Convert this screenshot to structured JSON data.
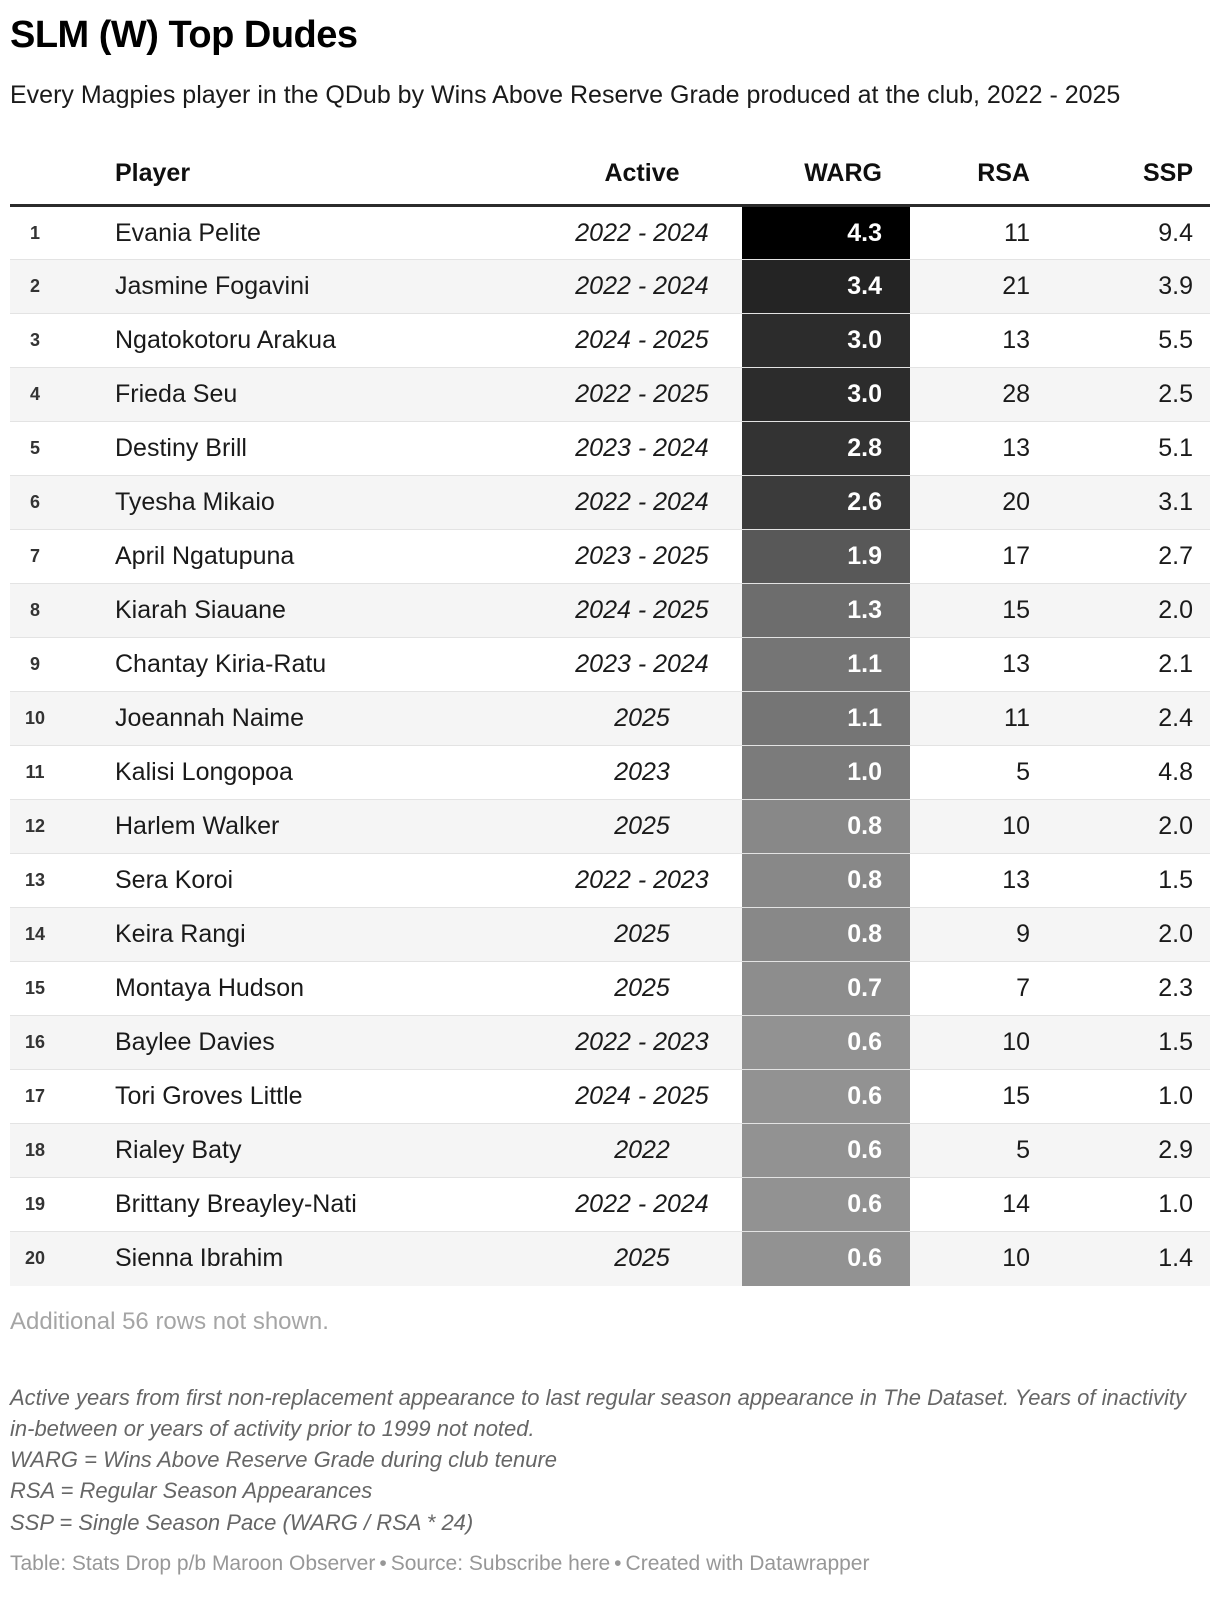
{
  "header": {
    "title": "SLM (W) Top Dudes",
    "subtitle": "Every Magpies player in the QDub by Wins Above Reserve Grade produced at the club, 2022 - 2025"
  },
  "chart_data": {
    "type": "table",
    "title": "SLM (W) Top Dudes",
    "subtitle": "Every Magpies player in the QDub by Wins Above Reserve Grade produced at the club, 2022 - 2025",
    "columns": [
      "Player",
      "Active",
      "WARG",
      "RSA",
      "SSP"
    ],
    "heatmap_column": "WARG",
    "heatmap_range": [
      0.6,
      4.3
    ],
    "heatmap_colors": {
      "high": "#000000",
      "low": "#929292"
    },
    "rows": [
      {
        "rank": "1",
        "player": "Evania Pelite",
        "active": "2022 - 2024",
        "warg": "4.3",
        "warg_color": "#000000",
        "rsa": "11",
        "ssp": "9.4"
      },
      {
        "rank": "2",
        "player": "Jasmine Fogavini",
        "active": "2022 - 2024",
        "warg": "3.4",
        "warg_color": "#242424",
        "rsa": "21",
        "ssp": "3.9"
      },
      {
        "rank": "3",
        "player": "Ngatokotoru Arakua",
        "active": "2024 - 2025",
        "warg": "3.0",
        "warg_color": "#2c2c2c",
        "rsa": "13",
        "ssp": "5.5"
      },
      {
        "rank": "4",
        "player": "Frieda Seu",
        "active": "2022 - 2025",
        "warg": "3.0",
        "warg_color": "#2c2c2c",
        "rsa": "28",
        "ssp": "2.5"
      },
      {
        "rank": "5",
        "player": "Destiny Brill",
        "active": "2023 - 2024",
        "warg": "2.8",
        "warg_color": "#333333",
        "rsa": "13",
        "ssp": "5.1"
      },
      {
        "rank": "6",
        "player": "Tyesha Mikaio",
        "active": "2022 - 2024",
        "warg": "2.6",
        "warg_color": "#3b3b3b",
        "rsa": "20",
        "ssp": "3.1"
      },
      {
        "rank": "7",
        "player": "April Ngatupuna",
        "active": "2023 - 2025",
        "warg": "1.9",
        "warg_color": "#585858",
        "rsa": "17",
        "ssp": "2.7"
      },
      {
        "rank": "8",
        "player": "Kiarah Siauane",
        "active": "2024 - 2025",
        "warg": "1.3",
        "warg_color": "#6d6d6d",
        "rsa": "15",
        "ssp": "2.0"
      },
      {
        "rank": "9",
        "player": "Chantay Kiria-Ratu",
        "active": "2023 - 2024",
        "warg": "1.1",
        "warg_color": "#757575",
        "rsa": "13",
        "ssp": "2.1"
      },
      {
        "rank": "10",
        "player": "Joeannah Naime",
        "active": "2025",
        "warg": "1.1",
        "warg_color": "#757575",
        "rsa": "11",
        "ssp": "2.4"
      },
      {
        "rank": "11",
        "player": "Kalisi Longopoa",
        "active": "2023",
        "warg": "1.0",
        "warg_color": "#7b7b7b",
        "rsa": "5",
        "ssp": "4.8"
      },
      {
        "rank": "12",
        "player": "Harlem Walker",
        "active": "2025",
        "warg": "0.8",
        "warg_color": "#888888",
        "rsa": "10",
        "ssp": "2.0"
      },
      {
        "rank": "13",
        "player": "Sera Koroi",
        "active": "2022 - 2023",
        "warg": "0.8",
        "warg_color": "#888888",
        "rsa": "13",
        "ssp": "1.5"
      },
      {
        "rank": "14",
        "player": "Keira Rangi",
        "active": "2025",
        "warg": "0.8",
        "warg_color": "#888888",
        "rsa": "9",
        "ssp": "2.0"
      },
      {
        "rank": "15",
        "player": "Montaya Hudson",
        "active": "2025",
        "warg": "0.7",
        "warg_color": "#8d8d8d",
        "rsa": "7",
        "ssp": "2.3"
      },
      {
        "rank": "16",
        "player": "Baylee Davies",
        "active": "2022 - 2023",
        "warg": "0.6",
        "warg_color": "#929292",
        "rsa": "10",
        "ssp": "1.5"
      },
      {
        "rank": "17",
        "player": "Tori Groves Little",
        "active": "2024 - 2025",
        "warg": "0.6",
        "warg_color": "#929292",
        "rsa": "15",
        "ssp": "1.0"
      },
      {
        "rank": "18",
        "player": "Rialey Baty",
        "active": "2022",
        "warg": "0.6",
        "warg_color": "#929292",
        "rsa": "5",
        "ssp": "2.9"
      },
      {
        "rank": "19",
        "player": "Brittany Breayley-Nati",
        "active": "2022 - 2024",
        "warg": "0.6",
        "warg_color": "#929292",
        "rsa": "14",
        "ssp": "1.0"
      },
      {
        "rank": "20",
        "player": "Sienna Ibrahim",
        "active": "2025",
        "warg": "0.6",
        "warg_color": "#929292",
        "rsa": "10",
        "ssp": "1.4"
      }
    ]
  },
  "pagination_note": "Additional 56 rows not shown.",
  "footnotes": [
    "Active years from first non-replacement appearance to last regular season appearance in The Dataset. Years of inactivity in-between or years of activity prior to 1999 not noted.",
    "WARG = Wins Above Reserve Grade during club tenure",
    "RSA = Regular Season Appearances",
    "SSP = Single Season Pace (WARG / RSA * 24)"
  ],
  "footer": {
    "table_credit": "Table: Stats Drop p/b Maroon Observer",
    "source_label": "Source: ",
    "source_link": "Subscribe here",
    "created_with": "Created with Datawrapper",
    "separator": "•"
  }
}
